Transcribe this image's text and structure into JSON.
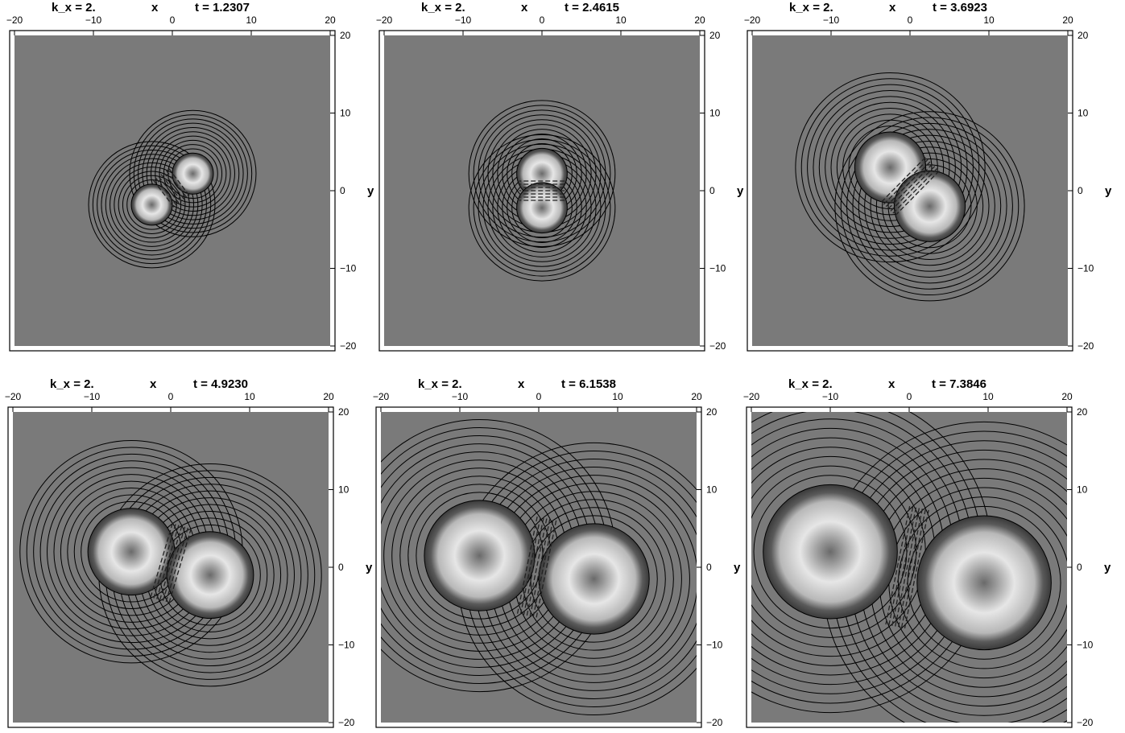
{
  "chart_data": {
    "type": "contour",
    "panels": [
      {
        "kx_label": "k_x = 2.",
        "xlabel": "x",
        "ylabel": "y",
        "t_label": "t = 1.2307",
        "x_ticks": [
          "−20",
          "−10",
          "0",
          "10",
          "20"
        ],
        "y_ticks": [
          "20",
          "10",
          "0",
          "−10",
          "−20"
        ],
        "xlim": [
          -20,
          20
        ],
        "ylim": [
          -20,
          20
        ],
        "blobs": [
          {
            "x": -2.6,
            "y": -1.8,
            "r": 2.6
          },
          {
            "x": 2.6,
            "y": 2.2,
            "r": 2.6
          }
        ]
      },
      {
        "kx_label": "k_x = 2.",
        "xlabel": "x",
        "ylabel": "y",
        "t_label": "t = 2.4615",
        "x_ticks": [
          "−20",
          "−10",
          "0",
          "10",
          "20"
        ],
        "y_ticks": [
          "20",
          "10",
          "0",
          "−10",
          "−20"
        ],
        "xlim": [
          -20,
          20
        ],
        "ylim": [
          -20,
          20
        ],
        "blobs": [
          {
            "x": 0,
            "y": 2.2,
            "r": 3.2
          },
          {
            "x": 0,
            "y": -2.2,
            "r": 3.2
          }
        ]
      },
      {
        "kx_label": "k_x = 2.",
        "xlabel": "x",
        "ylabel": "y",
        "t_label": "t = 3.6923",
        "x_ticks": [
          "−20",
          "−10",
          "0",
          "10",
          "20"
        ],
        "y_ticks": [
          "20",
          "10",
          "0",
          "−10",
          "−20"
        ],
        "xlim": [
          -20,
          20
        ],
        "ylim": [
          -20,
          20
        ],
        "blobs": [
          {
            "x": -2.5,
            "y": 3.0,
            "r": 4.5
          },
          {
            "x": 2.5,
            "y": -2.0,
            "r": 4.5
          }
        ]
      },
      {
        "kx_label": "k_x = 2.",
        "xlabel": "x",
        "ylabel": "y",
        "t_label": "t = 4.9230",
        "x_ticks": [
          "−20",
          "−10",
          "0",
          "10",
          "20"
        ],
        "y_ticks": [
          "20",
          "10",
          "0",
          "−10",
          "−20"
        ],
        "xlim": [
          -20,
          20
        ],
        "ylim": [
          -20,
          20
        ],
        "blobs": [
          {
            "x": -5.0,
            "y": 2.0,
            "r": 5.5
          },
          {
            "x": 5.0,
            "y": -1.0,
            "r": 5.5
          }
        ]
      },
      {
        "kx_label": "k_x = 2.",
        "xlabel": "x",
        "ylabel": "y",
        "t_label": "t = 6.1538",
        "x_ticks": [
          "−20",
          "−10",
          "0",
          "10",
          "20"
        ],
        "y_ticks": [
          "20",
          "10",
          "0",
          "−10",
          "−20"
        ],
        "xlim": [
          -20,
          20
        ],
        "ylim": [
          -20,
          20
        ],
        "blobs": [
          {
            "x": -7.5,
            "y": 1.5,
            "r": 7.0
          },
          {
            "x": 7.0,
            "y": -1.5,
            "r": 7.0
          }
        ]
      },
      {
        "kx_label": "k_x = 2.",
        "xlabel": "x",
        "ylabel": "y",
        "t_label": "t = 7.3846",
        "x_ticks": [
          "−20",
          "−10",
          "0",
          "10",
          "20"
        ],
        "y_ticks": [
          "20",
          "10",
          "0",
          "−10",
          "−20"
        ],
        "xlim": [
          -20,
          20
        ],
        "ylim": [
          -20,
          20
        ],
        "blobs": [
          {
            "x": -10.0,
            "y": 2.0,
            "r": 8.5
          },
          {
            "x": 9.5,
            "y": -2.0,
            "r": 8.5
          }
        ]
      }
    ],
    "colors": {
      "background": "#7a7a7a",
      "frame": "#000000",
      "contour": "#000000",
      "highlight": "#e6e6e6"
    }
  }
}
